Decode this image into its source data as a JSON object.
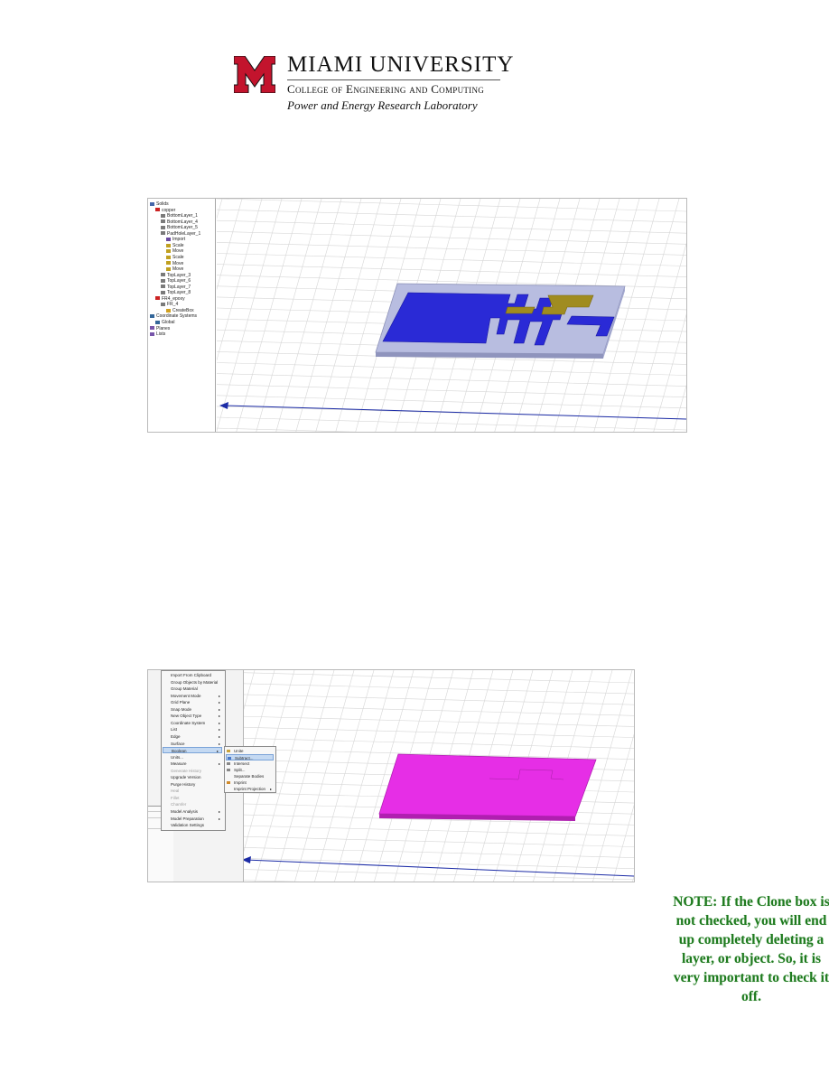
{
  "letterhead": {
    "university": "MIAMI UNIVERSITY",
    "college": "College of Engineering and Computing",
    "lab": "Power and Energy Research Laboratory",
    "logo_color": "#c3142d"
  },
  "screenshot1": {
    "tree": {
      "items": [
        "Solids",
        "copper",
        "BottomLayer_1",
        "BottomLayer_4",
        "BottomLayer_5",
        "PadHoleLayer_1",
        "Import",
        "Scale",
        "Move",
        "Scale",
        "Move",
        "Move",
        "TopLayer_3",
        "TopLayer_6",
        "TopLayer_7",
        "TopLayer_8",
        "FR4_epoxy",
        "FR_4",
        "CreateBox",
        "Coordinate Systems",
        "Global",
        "Planes",
        "Lists"
      ]
    },
    "colors": {
      "copper": "#2a2ad6",
      "substrate": "#aab0d8",
      "pad": "#a08c20"
    }
  },
  "screenshot2": {
    "menu": {
      "items": [
        "Import From Clipboard",
        "Group Objects by Material",
        "Group Material",
        "Movement Mode",
        "Grid Plane",
        "Snap Mode",
        "New Object Type",
        "Coordinate System",
        "List",
        "Edge",
        "Surface",
        "Boolean",
        "Units...",
        "Measure",
        "Generate History",
        "Upgrade Version",
        "Purge History",
        "Heal",
        "Fillet",
        "Chamfer",
        "Model Analysis",
        "Model Preparation",
        "Validation Settings"
      ],
      "disabled": [
        14,
        17,
        18,
        19
      ],
      "submenu_index": [
        3,
        4,
        5,
        6,
        7,
        8,
        9,
        10,
        11,
        13,
        20,
        21
      ],
      "highlighted": 11
    },
    "submenu": {
      "items": [
        "Unite",
        "Subtract...",
        "Intersect",
        "Split...",
        "Separate Bodies",
        "Imprint",
        "Imprint Projection"
      ],
      "highlighted": 1
    },
    "colors": {
      "plate": "#e62ee6",
      "plate_edge": "#b01fb0"
    }
  },
  "note": {
    "text": "NOTE: If the Clone box is not checked, you will end up completely deleting a layer, or object. So, it is very important to check it off."
  }
}
